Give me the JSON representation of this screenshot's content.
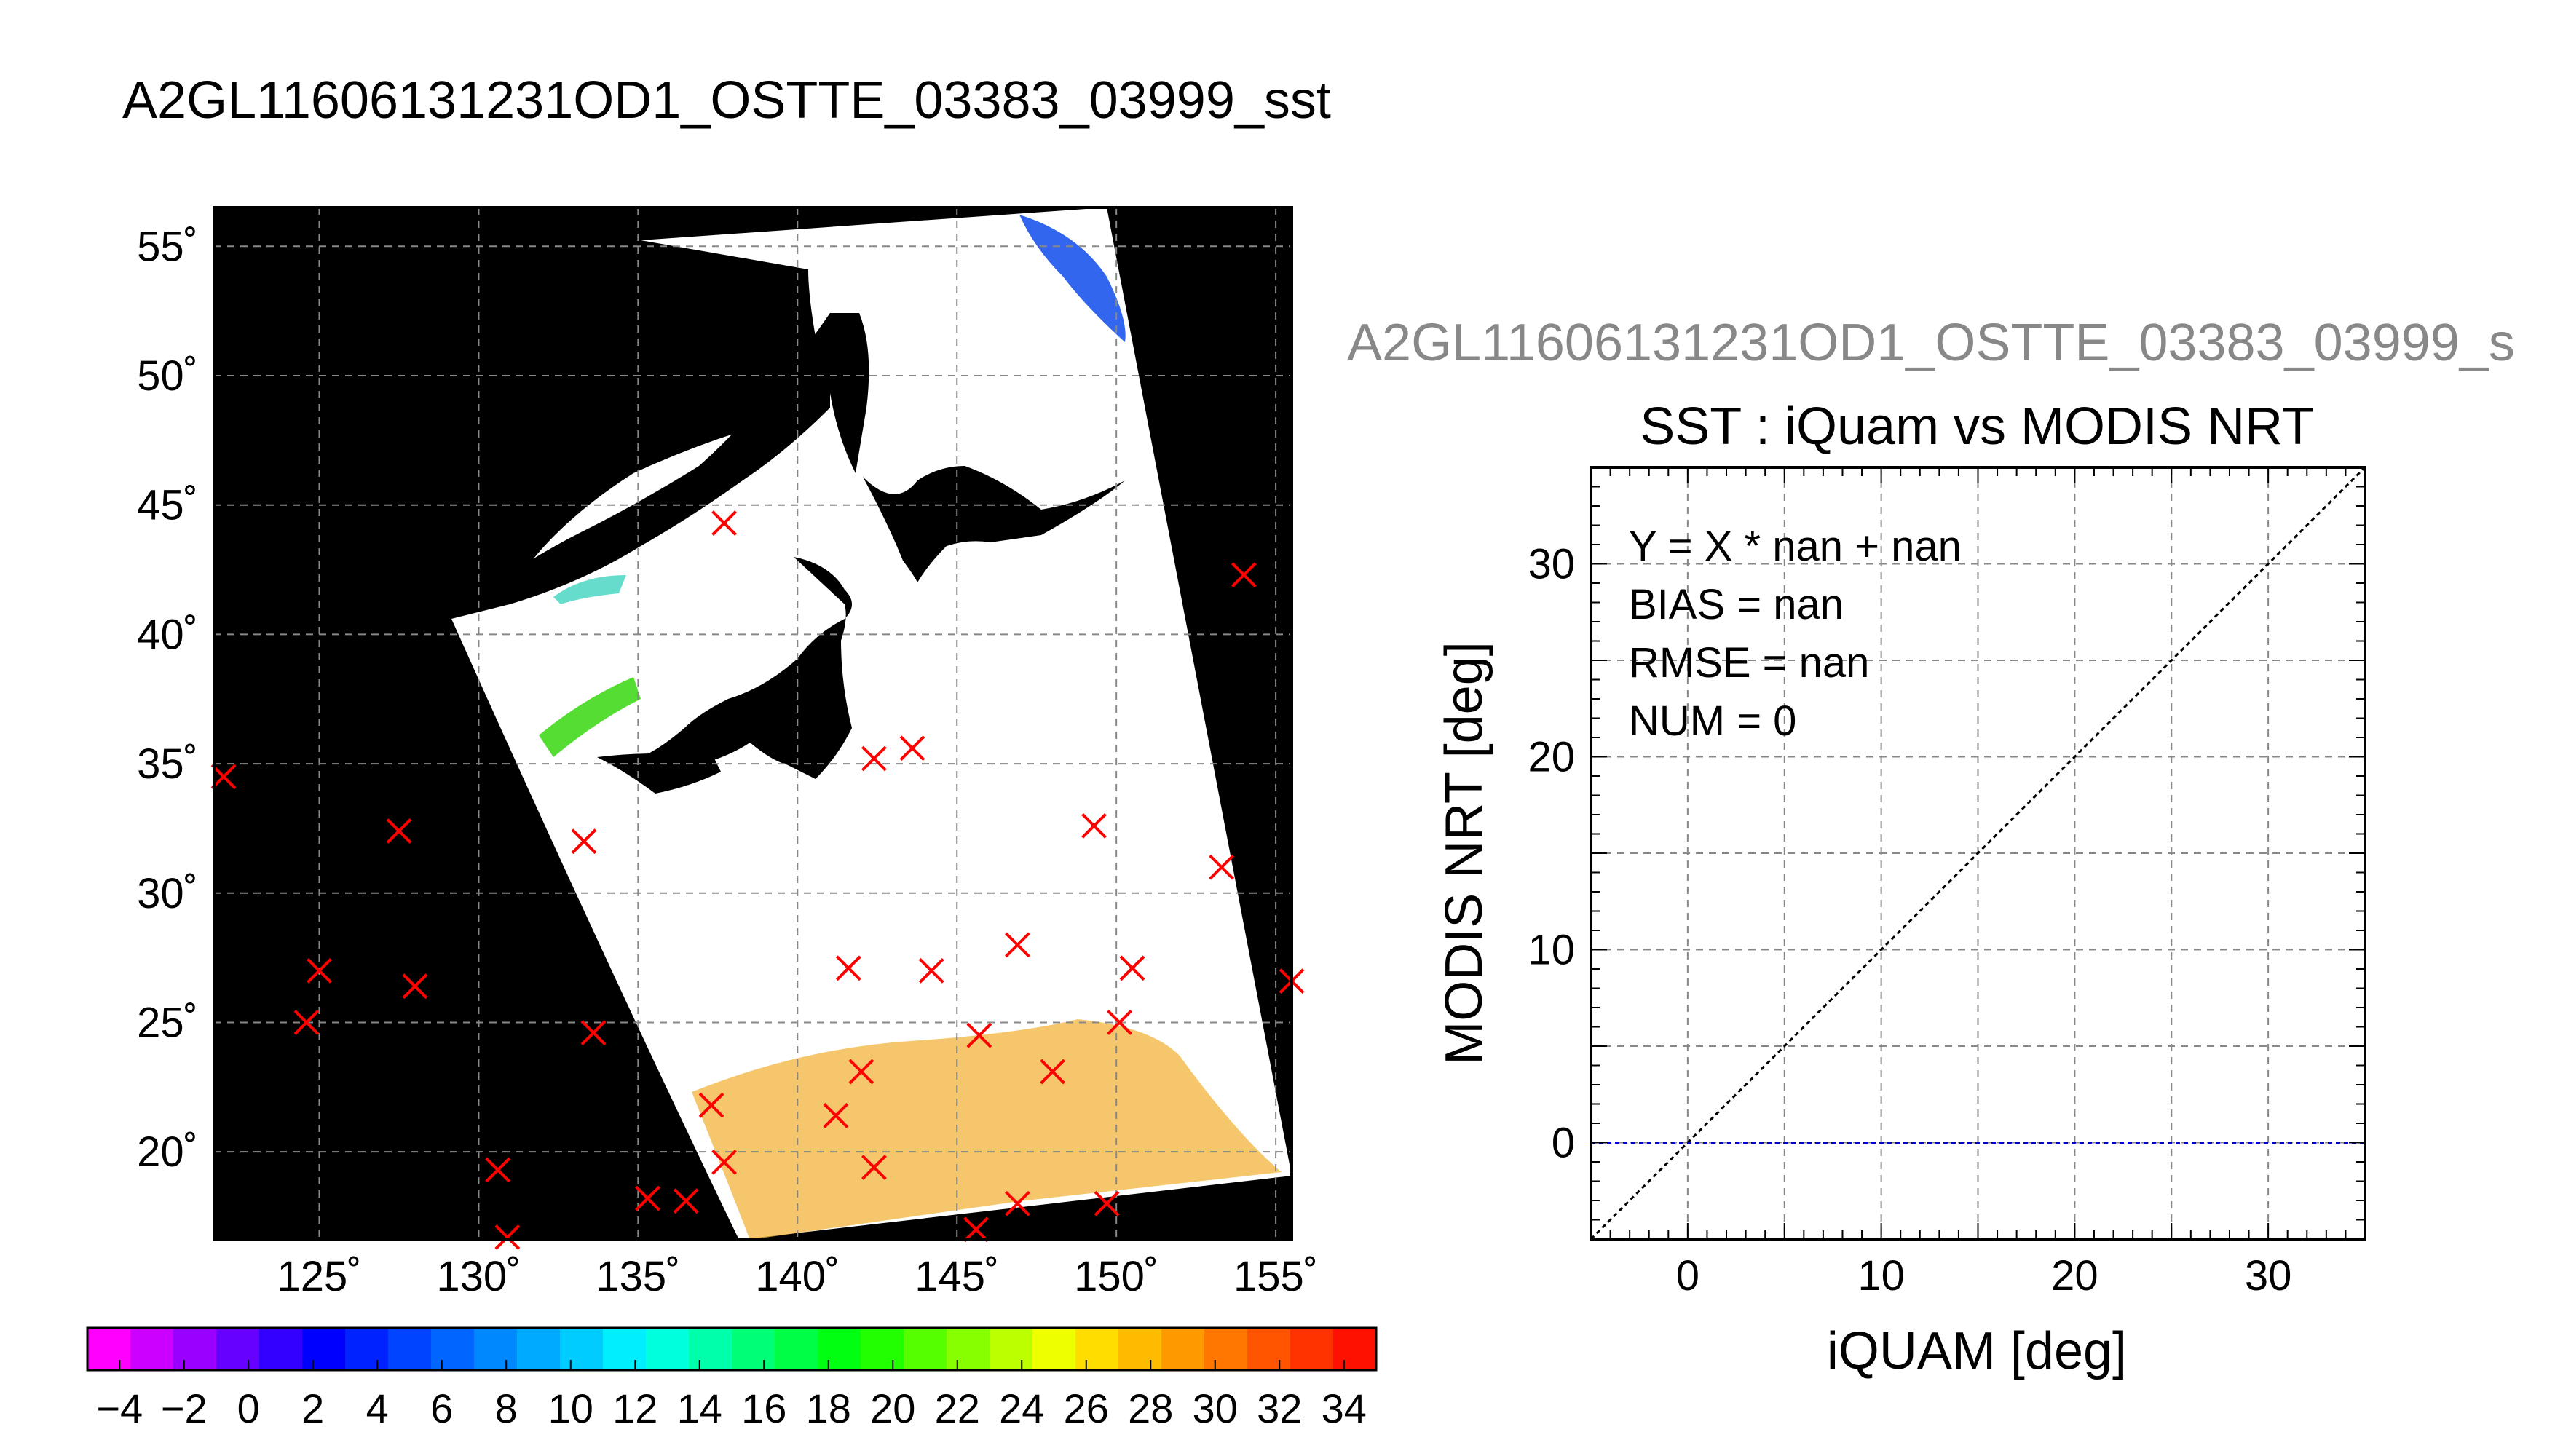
{
  "header": {
    "title": "A2GL11606131231OD1_OSTTE_03383_03999_sst"
  },
  "chart_data": [
    {
      "type": "map",
      "title": "",
      "x_ticks": [
        {
          "value": 125,
          "label": "125˚"
        },
        {
          "value": 130,
          "label": "130˚"
        },
        {
          "value": 135,
          "label": "135˚"
        },
        {
          "value": 140,
          "label": "140˚"
        },
        {
          "value": 145,
          "label": "145˚"
        },
        {
          "value": 150,
          "label": "150˚"
        },
        {
          "value": 155,
          "label": "155˚"
        }
      ],
      "y_ticks": [
        {
          "value": 20,
          "label": "20˚"
        },
        {
          "value": 25,
          "label": "25˚"
        },
        {
          "value": 30,
          "label": "30˚"
        },
        {
          "value": 35,
          "label": "35˚"
        },
        {
          "value": 40,
          "label": "40˚"
        },
        {
          "value": 45,
          "label": "45˚"
        },
        {
          "value": 50,
          "label": "50˚"
        },
        {
          "value": 55,
          "label": "55˚"
        }
      ],
      "xlim": [
        121.7,
        155.5
      ],
      "ylim": [
        16.6,
        56.5
      ],
      "grid": true,
      "background": "#000000",
      "marker_color": "#ff0000",
      "markers": [
        {
          "lon": 122.0,
          "lat": 34.5
        },
        {
          "lon": 127.5,
          "lat": 32.4
        },
        {
          "lon": 125.0,
          "lat": 27.0
        },
        {
          "lon": 124.6,
          "lat": 25.0
        },
        {
          "lon": 128.0,
          "lat": 26.4
        },
        {
          "lon": 133.3,
          "lat": 32.0
        },
        {
          "lon": 133.6,
          "lat": 24.6
        },
        {
          "lon": 130.6,
          "lat": 19.3
        },
        {
          "lon": 130.9,
          "lat": 16.7
        },
        {
          "lon": 137.7,
          "lat": 44.3
        },
        {
          "lon": 142.4,
          "lat": 35.2
        },
        {
          "lon": 143.6,
          "lat": 35.6
        },
        {
          "lon": 141.6,
          "lat": 27.1
        },
        {
          "lon": 144.2,
          "lat": 27.0
        },
        {
          "lon": 146.9,
          "lat": 28.0
        },
        {
          "lon": 149.3,
          "lat": 32.6
        },
        {
          "lon": 150.5,
          "lat": 27.1
        },
        {
          "lon": 153.3,
          "lat": 31.0
        },
        {
          "lon": 154.0,
          "lat": 42.3
        },
        {
          "lon": 155.5,
          "lat": 26.6
        },
        {
          "lon": 150.1,
          "lat": 25.0
        },
        {
          "lon": 145.7,
          "lat": 24.5
        },
        {
          "lon": 148.0,
          "lat": 23.1
        },
        {
          "lon": 142.0,
          "lat": 23.1
        },
        {
          "lon": 141.2,
          "lat": 21.4
        },
        {
          "lon": 137.3,
          "lat": 21.8
        },
        {
          "lon": 137.7,
          "lat": 19.6
        },
        {
          "lon": 142.4,
          "lat": 19.4
        },
        {
          "lon": 135.3,
          "lat": 18.2
        },
        {
          "lon": 136.5,
          "lat": 18.1
        },
        {
          "lon": 146.9,
          "lat": 18.0
        },
        {
          "lon": 149.7,
          "lat": 18.0
        },
        {
          "lon": 145.6,
          "lat": 17.0
        }
      ]
    },
    {
      "type": "colorbar",
      "labels": [
        "−4",
        "−2",
        "0",
        "2",
        "4",
        "6",
        "8",
        "10",
        "12",
        "14",
        "16",
        "18",
        "20",
        "22",
        "24",
        "26",
        "28",
        "30",
        "32",
        "34"
      ],
      "range": [
        -5,
        35
      ],
      "colors": [
        "#ff00ff",
        "#cc00ff",
        "#9900ff",
        "#6600ff",
        "#3300ff",
        "#0000ff",
        "#0022ff",
        "#0044ff",
        "#0066ff",
        "#0088ff",
        "#00aaff",
        "#00ccff",
        "#00eeff",
        "#00ffdd",
        "#00ffaa",
        "#00ff77",
        "#00ff44",
        "#00ff11",
        "#22ff00",
        "#55ff00",
        "#88ff00",
        "#bbff00",
        "#eeff00",
        "#ffdd00",
        "#ffbb00",
        "#ff9900",
        "#ff7700",
        "#ff5500",
        "#ff3300",
        "#ff1100"
      ]
    },
    {
      "type": "scatter",
      "title": "SST : iQuam vs MODIS NRT",
      "file_label": "A2GL11606131231OD1_OSTTE_03383_03999_s",
      "xlabel": "iQUAM [deg]",
      "ylabel": "MODIS NRT [deg]",
      "xlim": [
        -5,
        35
      ],
      "ylim": [
        -5,
        35
      ],
      "xticks": [
        0,
        10,
        20,
        30
      ],
      "yticks": [
        0,
        10,
        20,
        30
      ],
      "grid": true,
      "series": [],
      "lines": [
        {
          "kind": "one-to-one",
          "color": "#000000",
          "points": [
            [
              -5,
              -5
            ],
            [
              35,
              35
            ]
          ]
        },
        {
          "kind": "zero",
          "color": "#0000cc",
          "points": [
            [
              -5,
              0
            ],
            [
              35,
              0
            ]
          ]
        }
      ],
      "stats": [
        "Y = X * nan + nan",
        "BIAS = nan",
        "RMSE = nan",
        "NUM = 0"
      ]
    }
  ]
}
